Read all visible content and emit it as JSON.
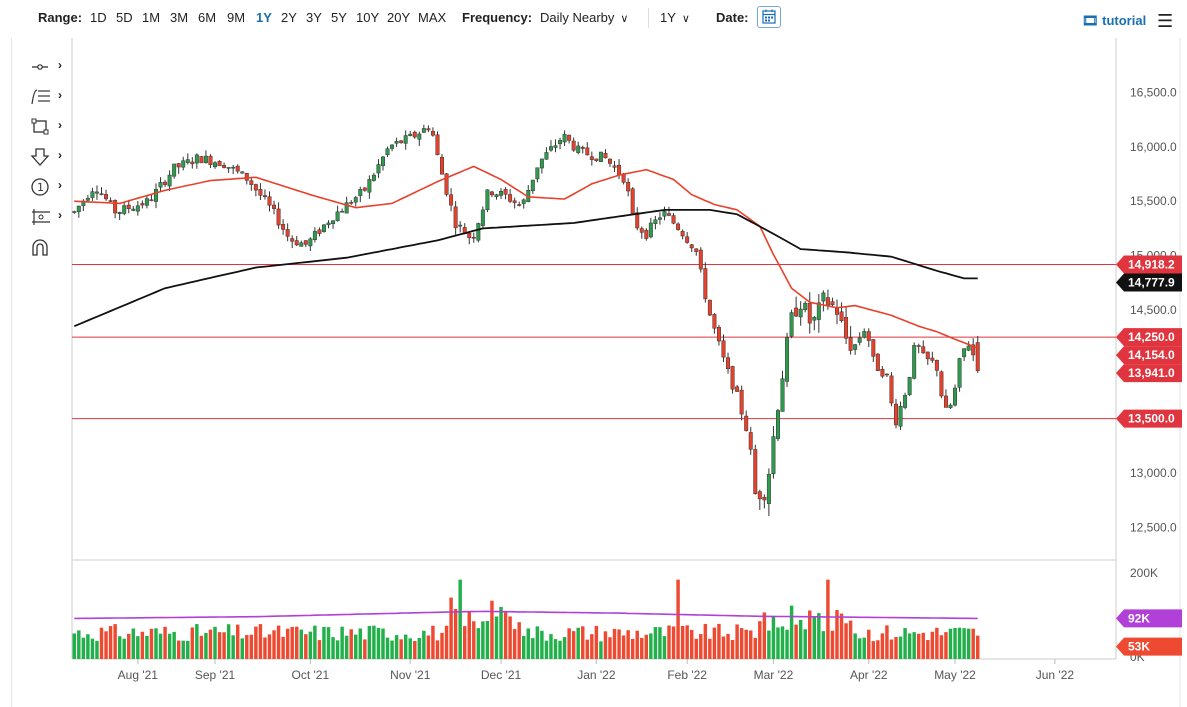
{
  "toolbar": {
    "range_label": "Range:",
    "ranges": [
      "1D",
      "5D",
      "1M",
      "3M",
      "6M",
      "9M",
      "1Y",
      "2Y",
      "3Y",
      "5Y",
      "10Y",
      "20Y",
      "MAX"
    ],
    "active_range": "1Y",
    "frequency_label": "Frequency:",
    "frequency_value": "Daily Nearby",
    "period_value": "1Y",
    "date_label": "Date:",
    "tutorial_label": "tutorial"
  },
  "drawing_tools": [
    "crosshair-tool",
    "fibonacci-tool",
    "rectangle-tool",
    "arrow-tool",
    "counter-tool",
    "measure-tool",
    "magnet-tool"
  ],
  "colors": {
    "up_candle": "#2e9a4e",
    "down_candle": "#e8412b",
    "ma_short": "#e8412b",
    "ma_long": "#111111",
    "hline": "#e0343f",
    "volume_avg": "#b040d8",
    "vol_up": "#22b04a",
    "vol_down": "#ee4a32"
  },
  "chart_data": {
    "type": "candlestick",
    "price_axis": {
      "ticks": [
        "16,500.0",
        "16,000.0",
        "15,500.0",
        "15,000.0",
        "14,500.0",
        "13,000.0",
        "12,500.0"
      ],
      "tick_values": [
        16500,
        16000,
        15500,
        15000,
        14500,
        13000,
        12500
      ],
      "ylim": [
        12200,
        16900
      ]
    },
    "x_axis": {
      "labels": [
        "Aug '21",
        "Sep '21",
        "Oct '21",
        "Nov '21",
        "Dec '21",
        "Jan '22",
        "Feb '22",
        "Mar '22",
        "Apr '22",
        "May '22",
        "Jun '22"
      ],
      "tick_index": [
        14,
        31,
        52,
        74,
        94,
        115,
        135,
        154,
        175,
        194,
        216
      ]
    },
    "horizontal_lines": [
      14918.2,
      14250.0,
      13500.0
    ],
    "price_tags": [
      {
        "label": "14,918.2",
        "value": 14918.2,
        "kind": "line"
      },
      {
        "label": "14,777.9",
        "value": 14777.9,
        "kind": "ma_long"
      },
      {
        "label": "14,250.0",
        "value": 14250.0,
        "kind": "line"
      },
      {
        "label": "14,154.0",
        "value": 14154.0,
        "kind": "ma_short"
      },
      {
        "label": "13,941.0",
        "value": 13941.0,
        "kind": "last"
      },
      {
        "label": "13,500.0",
        "value": 13500.0,
        "kind": "line"
      }
    ],
    "moving_average_short_anchors": [
      [
        0,
        15500
      ],
      [
        10,
        15480
      ],
      [
        20,
        15600
      ],
      [
        30,
        15690
      ],
      [
        40,
        15720
      ],
      [
        52,
        15560
      ],
      [
        62,
        15440
      ],
      [
        70,
        15480
      ],
      [
        80,
        15680
      ],
      [
        88,
        15820
      ],
      [
        94,
        15700
      ],
      [
        100,
        15540
      ],
      [
        108,
        15520
      ],
      [
        114,
        15660
      ],
      [
        120,
        15740
      ],
      [
        126,
        15790
      ],
      [
        132,
        15700
      ],
      [
        136,
        15560
      ],
      [
        141,
        15470
      ],
      [
        146,
        15420
      ],
      [
        151,
        15270
      ],
      [
        154,
        15010
      ],
      [
        158,
        14700
      ],
      [
        162,
        14570
      ],
      [
        168,
        14520
      ],
      [
        172,
        14540
      ],
      [
        180,
        14450
      ],
      [
        186,
        14350
      ],
      [
        190,
        14300
      ],
      [
        194,
        14230
      ],
      [
        199,
        14150
      ]
    ],
    "moving_average_long_anchors": [
      [
        0,
        14350
      ],
      [
        20,
        14700
      ],
      [
        40,
        14890
      ],
      [
        60,
        14980
      ],
      [
        80,
        15140
      ],
      [
        90,
        15250
      ],
      [
        110,
        15300
      ],
      [
        120,
        15360
      ],
      [
        130,
        15420
      ],
      [
        140,
        15420
      ],
      [
        146,
        15380
      ],
      [
        154,
        15200
      ],
      [
        160,
        15060
      ],
      [
        170,
        15030
      ],
      [
        180,
        14990
      ],
      [
        190,
        14860
      ],
      [
        196,
        14790
      ]
    ],
    "volume_axis": {
      "ticks": [
        "200K",
        "0K"
      ],
      "tick_values": [
        200,
        0
      ],
      "tags": [
        {
          "label": "92K",
          "value": 92,
          "kind": "avg"
        },
        {
          "label": "53K",
          "value": 53,
          "kind": "last"
        }
      ]
    },
    "volume_avg_anchors": [
      [
        0,
        92
      ],
      [
        40,
        96
      ],
      [
        80,
        106
      ],
      [
        90,
        108
      ],
      [
        120,
        104
      ],
      [
        150,
        97
      ],
      [
        170,
        95
      ],
      [
        199,
        92
      ]
    ]
  }
}
